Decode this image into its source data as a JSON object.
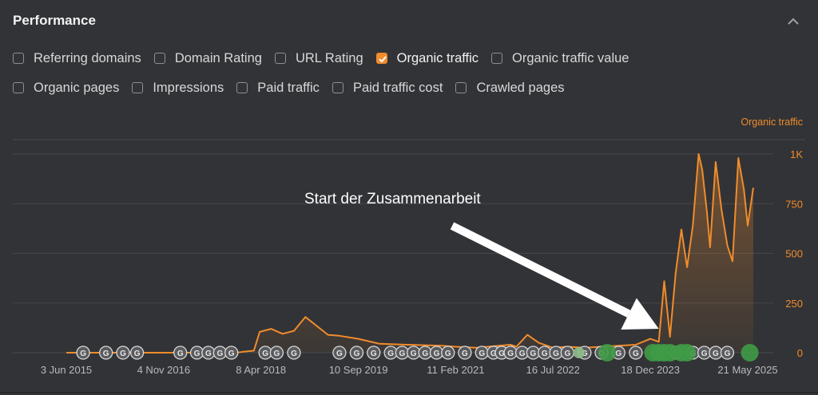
{
  "header": {
    "title": "Performance",
    "collapse_icon": "chevron-up-icon"
  },
  "checkboxes": {
    "row1": [
      {
        "label": "Referring domains",
        "checked": false
      },
      {
        "label": "Domain Rating",
        "checked": false
      },
      {
        "label": "URL Rating",
        "checked": false
      },
      {
        "label": "Organic traffic",
        "checked": true
      },
      {
        "label": "Organic traffic value",
        "checked": false
      }
    ],
    "row2": [
      {
        "label": "Organic pages",
        "checked": false
      },
      {
        "label": "Impressions",
        "checked": false
      },
      {
        "label": "Paid traffic",
        "checked": false
      },
      {
        "label": "Paid traffic cost",
        "checked": false
      },
      {
        "label": "Crawled pages",
        "checked": false
      }
    ]
  },
  "colors": {
    "accent": "#f08c2c",
    "grid": "#47484c",
    "marker_gray": "#5a5b5f",
    "marker_green": "#3f9b46",
    "marker_light_green": "#8fc089",
    "annotation": "#ffffff"
  },
  "chart_data": {
    "type": "area",
    "series": [
      {
        "name": "Organic traffic",
        "x": [
          "2015-06-03",
          "2016-06-01",
          "2017-06-01",
          "2017-12-01",
          "2018-01-01",
          "2018-03-01",
          "2018-04-01",
          "2018-06-01",
          "2018-08-01",
          "2018-10-01",
          "2018-12-01",
          "2019-04-01",
          "2019-06-01",
          "2019-09-10",
          "2020-01-01",
          "2020-06-01",
          "2020-12-01",
          "2021-02-11",
          "2021-06-01",
          "2021-12-01",
          "2022-01-01",
          "2022-03-01",
          "2022-05-01",
          "2022-07-16",
          "2022-10-01",
          "2023-01-01",
          "2023-04-01",
          "2023-07-01",
          "2023-10-01",
          "2023-12-18",
          "2024-02-01",
          "2024-03-01",
          "2024-04-01",
          "2024-05-01",
          "2024-06-01",
          "2024-07-01",
          "2024-08-01",
          "2024-09-01",
          "2024-09-20",
          "2024-10-15",
          "2024-11-01",
          "2024-12-01",
          "2025-01-01",
          "2025-02-01",
          "2025-03-01",
          "2025-04-01",
          "2025-05-01",
          "2025-05-21",
          "2025-06-20"
        ],
        "values": [
          0,
          0,
          0,
          0,
          5,
          10,
          105,
          120,
          95,
          110,
          180,
          90,
          85,
          70,
          45,
          40,
          35,
          30,
          25,
          40,
          30,
          90,
          50,
          25,
          30,
          25,
          30,
          35,
          40,
          70,
          55,
          360,
          80,
          400,
          620,
          430,
          640,
          1000,
          920,
          710,
          530,
          960,
          720,
          540,
          460,
          980,
          820,
          640,
          830
        ]
      }
    ],
    "xlim": [
      "2015-06-03",
      "2025-06-20"
    ],
    "ylim": [
      0,
      1000
    ],
    "y_ticks": [
      0,
      250,
      500,
      750,
      1000
    ],
    "y_tick_labels": [
      "0",
      "250",
      "500",
      "750",
      "1K"
    ],
    "x_tick_labels": [
      "3 Jun 2015",
      "4 Nov 2016",
      "8 Apr 2018",
      "10 Sep 2019",
      "11 Feb 2021",
      "16 Jul 2022",
      "18 Dec 2023",
      "21 May 2025"
    ],
    "x_ticks": [
      "2015-06-03",
      "2016-11-04",
      "2018-04-08",
      "2019-09-10",
      "2021-02-11",
      "2022-07-16",
      "2023-12-18",
      "2025-05-21"
    ],
    "grid": true,
    "y_axis_position": "right",
    "annotation": {
      "text": "Start der Zusammenarbeit",
      "arrow_target_date": "2024-02-01"
    },
    "markers": {
      "gray_dates": [
        "2015-09-01",
        "2016-01-01",
        "2016-04-01",
        "2016-06-15",
        "2017-02-01",
        "2017-05-01",
        "2017-07-01",
        "2017-09-01",
        "2017-11-01",
        "2018-05-01",
        "2018-07-01",
        "2018-10-01",
        "2019-06-01",
        "2019-09-01",
        "2019-12-01",
        "2020-03-01",
        "2020-05-01",
        "2020-07-01",
        "2020-09-01",
        "2020-11-01",
        "2021-01-01",
        "2021-04-01",
        "2021-07-01",
        "2021-09-01",
        "2021-10-15",
        "2021-12-01",
        "2022-02-01",
        "2022-04-01",
        "2022-06-01",
        "2022-08-01",
        "2022-10-01",
        "2023-01-01",
        "2023-04-01",
        "2023-07-01",
        "2023-10-01",
        "2024-05-01",
        "2024-08-01",
        "2024-10-01",
        "2024-12-01",
        "2025-02-01"
      ],
      "green_dates": [
        "2022-12-01",
        "2023-05-01",
        "2024-01-01",
        "2024-02-01",
        "2024-03-01",
        "2024-04-01",
        "2024-06-01",
        "2024-07-01",
        "2025-06-01"
      ]
    }
  }
}
